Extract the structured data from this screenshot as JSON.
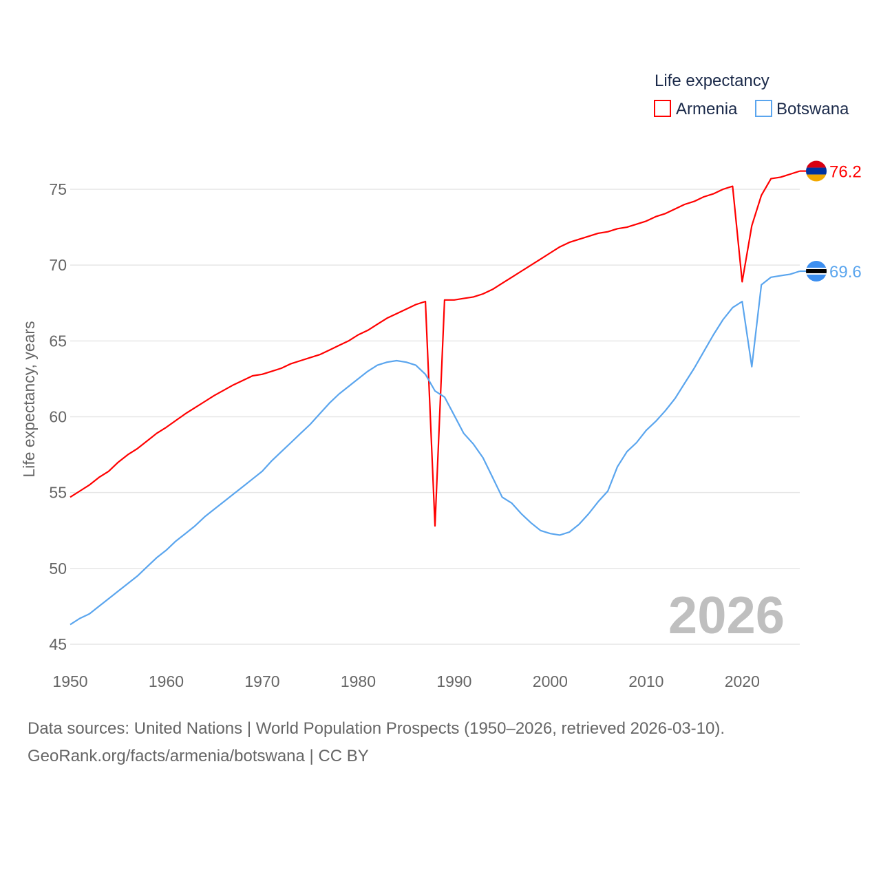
{
  "chart_data": {
    "type": "line",
    "legend_title": "Life expectancy",
    "ylabel": "Life expectancy, years",
    "xlabel": "",
    "xlim": [
      1950,
      2026
    ],
    "ylim": [
      45,
      77
    ],
    "x_ticks": [
      1950,
      1960,
      1970,
      1980,
      1990,
      2000,
      2010,
      2020
    ],
    "y_ticks": [
      45,
      50,
      55,
      60,
      65,
      70,
      75
    ],
    "grid": true,
    "legend_position": "top-right",
    "year_label": "2026",
    "x": [
      1950,
      1951,
      1952,
      1953,
      1954,
      1955,
      1956,
      1957,
      1958,
      1959,
      1960,
      1961,
      1962,
      1963,
      1964,
      1965,
      1966,
      1967,
      1968,
      1969,
      1970,
      1971,
      1972,
      1973,
      1974,
      1975,
      1976,
      1977,
      1978,
      1979,
      1980,
      1981,
      1982,
      1983,
      1984,
      1985,
      1986,
      1987,
      1988,
      1989,
      1990,
      1991,
      1992,
      1993,
      1994,
      1995,
      1996,
      1997,
      1998,
      1999,
      2000,
      2001,
      2002,
      2003,
      2004,
      2005,
      2006,
      2007,
      2008,
      2009,
      2010,
      2011,
      2012,
      2013,
      2014,
      2015,
      2016,
      2017,
      2018,
      2019,
      2020,
      2021,
      2022,
      2023,
      2024,
      2025,
      2026
    ],
    "series": [
      {
        "name": "Armenia",
        "color": "#ff0000",
        "end_label": "76.2",
        "values": [
          54.7,
          55.1,
          55.5,
          56.0,
          56.4,
          57.0,
          57.5,
          57.9,
          58.4,
          58.9,
          59.3,
          59.75,
          60.2,
          60.6,
          61.0,
          61.4,
          61.75,
          62.1,
          62.4,
          62.7,
          62.8,
          63.0,
          63.2,
          63.5,
          63.7,
          63.9,
          64.1,
          64.4,
          64.7,
          65.0,
          65.4,
          65.7,
          66.1,
          66.5,
          66.8,
          67.1,
          67.4,
          67.6,
          52.8,
          67.7,
          67.7,
          67.8,
          67.9,
          68.1,
          68.4,
          68.8,
          69.2,
          69.6,
          70.0,
          70.4,
          70.8,
          71.2,
          71.5,
          71.7,
          71.9,
          72.1,
          72.2,
          72.4,
          72.5,
          72.7,
          72.9,
          73.2,
          73.4,
          73.7,
          74.0,
          74.2,
          74.5,
          74.7,
          75.0,
          75.2,
          68.9,
          72.6,
          74.6,
          75.7,
          75.8,
          76.0,
          76.2
        ]
      },
      {
        "name": "Botswana",
        "color": "#5aa5ee",
        "end_label": "69.6",
        "values": [
          46.3,
          46.7,
          47.0,
          47.5,
          48.0,
          48.5,
          49.0,
          49.5,
          50.1,
          50.7,
          51.2,
          51.8,
          52.3,
          52.8,
          53.4,
          53.9,
          54.4,
          54.9,
          55.4,
          55.9,
          56.4,
          57.1,
          57.7,
          58.3,
          58.9,
          59.5,
          60.2,
          60.9,
          61.5,
          62.0,
          62.5,
          63.0,
          63.4,
          63.6,
          63.7,
          63.6,
          63.4,
          62.8,
          61.7,
          61.3,
          60.1,
          58.9,
          58.2,
          57.3,
          56.0,
          54.7,
          54.3,
          53.6,
          53.0,
          52.5,
          52.3,
          52.2,
          52.4,
          52.9,
          53.6,
          54.4,
          55.1,
          56.7,
          57.7,
          58.3,
          59.1,
          59.7,
          60.4,
          61.2,
          62.2,
          63.2,
          64.3,
          65.4,
          66.4,
          67.2,
          67.6,
          63.3,
          68.7,
          69.2,
          69.3,
          69.4,
          69.6
        ]
      }
    ]
  },
  "footer": {
    "line1": "Data sources: United Nations | World Population Prospects (1950–2026, retrieved 2026-03-10).",
    "line2": "GeoRank.org/facts/armenia/botswana | CC BY"
  }
}
